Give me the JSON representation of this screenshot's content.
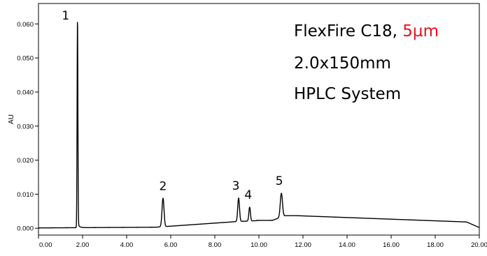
{
  "chart_data": {
    "type": "line",
    "xlabel": "",
    "ylabel": "AU",
    "xlim": [
      0,
      20
    ],
    "ylim": [
      -0.002,
      0.066
    ],
    "x_ticks": [
      "0.00",
      "2.00",
      "4.00",
      "6.00",
      "8.00",
      "10.00",
      "12.00",
      "14.00",
      "16.00",
      "18.00",
      "20.00"
    ],
    "y_ticks": [
      "0.000",
      "0.010",
      "0.020",
      "0.030",
      "0.040",
      "0.050",
      "0.060"
    ],
    "x_tick_values": [
      0,
      2,
      4,
      6,
      8,
      10,
      12,
      14,
      16,
      18,
      20
    ],
    "y_tick_values": [
      0,
      0.01,
      0.02,
      0.03,
      0.04,
      0.05,
      0.06
    ],
    "peaks": [
      {
        "label": "1",
        "x": 1.77,
        "y": 0.0615
      },
      {
        "label": "2",
        "x": 5.65,
        "y": 0.0088
      },
      {
        "label": "3",
        "x": 9.08,
        "y": 0.0089
      },
      {
        "label": "4",
        "x": 9.58,
        "y": 0.0062
      },
      {
        "label": "5",
        "x": 11.02,
        "y": 0.0103
      }
    ],
    "annotations": {
      "line1_text": "FlexFire C18, ",
      "line1_red": "5µm",
      "line2": "2.0x150mm",
      "line3": "HPLC System"
    },
    "colors": {
      "trace": "#000000",
      "highlight": "#e8141a"
    }
  }
}
